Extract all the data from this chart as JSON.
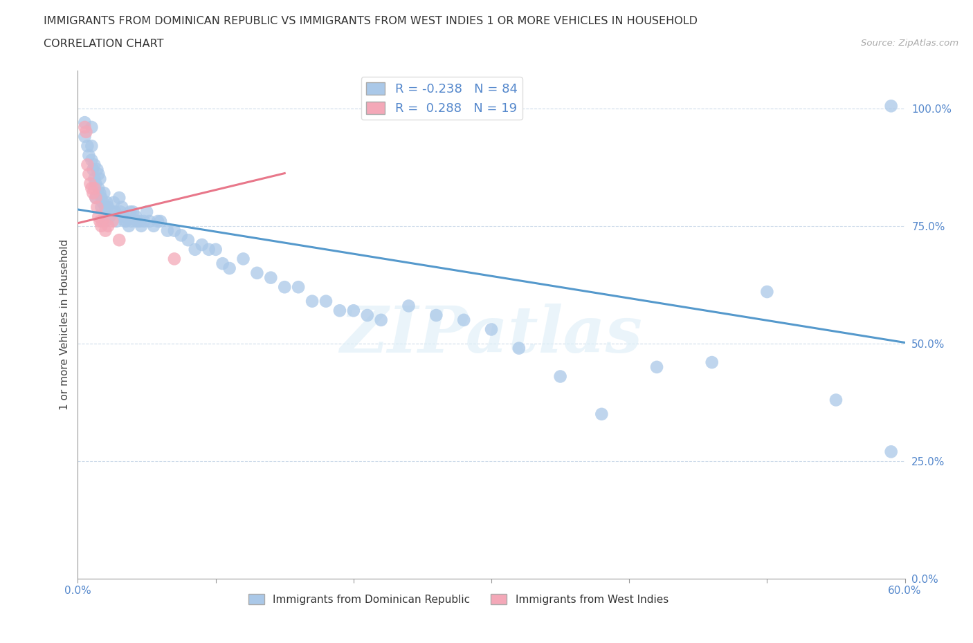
{
  "title_line1": "IMMIGRANTS FROM DOMINICAN REPUBLIC VS IMMIGRANTS FROM WEST INDIES 1 OR MORE VEHICLES IN HOUSEHOLD",
  "title_line2": "CORRELATION CHART",
  "source_text": "Source: ZipAtlas.com",
  "ylabel": "1 or more Vehicles in Household",
  "xmin": 0.0,
  "xmax": 0.6,
  "ymin": 0.0,
  "ymax": 1.08,
  "yticks": [
    0.0,
    0.25,
    0.5,
    0.75,
    1.0
  ],
  "ytick_labels": [
    "0.0%",
    "25.0%",
    "50.0%",
    "75.0%",
    "100.0%"
  ],
  "xtick_labels": [
    "0.0%",
    "",
    "",
    "",
    "",
    "",
    "60.0%"
  ],
  "xticks": [
    0.0,
    0.1,
    0.2,
    0.3,
    0.4,
    0.5,
    0.6
  ],
  "blue_R": -0.238,
  "blue_N": 84,
  "pink_R": 0.288,
  "pink_N": 19,
  "blue_color": "#aac8e8",
  "pink_color": "#f4a8b8",
  "blue_line_color": "#5599cc",
  "pink_line_color": "#e8778a",
  "legend_label_blue": "Immigrants from Dominican Republic",
  "legend_label_pink": "Immigrants from West Indies",
  "watermark": "ZIPatlas",
  "blue_line_x0": 0.0,
  "blue_line_y0": 0.785,
  "blue_line_x1": 0.6,
  "blue_line_y1": 0.502,
  "pink_line_x0": 0.0,
  "pink_line_y0": 0.756,
  "pink_line_x1": 0.15,
  "pink_line_y1": 0.862,
  "blue_scatter_x": [
    0.005,
    0.005,
    0.007,
    0.008,
    0.01,
    0.01,
    0.01,
    0.011,
    0.012,
    0.012,
    0.013,
    0.013,
    0.014,
    0.015,
    0.015,
    0.016,
    0.016,
    0.017,
    0.017,
    0.018,
    0.019,
    0.02,
    0.02,
    0.021,
    0.022,
    0.023,
    0.025,
    0.026,
    0.027,
    0.028,
    0.03,
    0.031,
    0.032,
    0.033,
    0.034,
    0.035,
    0.037,
    0.038,
    0.039,
    0.04,
    0.042,
    0.043,
    0.045,
    0.046,
    0.048,
    0.05,
    0.052,
    0.055,
    0.058,
    0.06,
    0.065,
    0.07,
    0.075,
    0.08,
    0.085,
    0.09,
    0.095,
    0.1,
    0.105,
    0.11,
    0.12,
    0.13,
    0.14,
    0.15,
    0.16,
    0.17,
    0.18,
    0.19,
    0.2,
    0.21,
    0.22,
    0.24,
    0.26,
    0.28,
    0.3,
    0.32,
    0.35,
    0.38,
    0.42,
    0.46,
    0.5,
    0.55,
    0.59,
    0.59
  ],
  "blue_scatter_y": [
    0.97,
    0.94,
    0.92,
    0.9,
    0.96,
    0.92,
    0.89,
    0.87,
    0.88,
    0.85,
    0.84,
    0.81,
    0.87,
    0.86,
    0.83,
    0.85,
    0.82,
    0.81,
    0.79,
    0.8,
    0.82,
    0.79,
    0.76,
    0.8,
    0.79,
    0.77,
    0.78,
    0.8,
    0.78,
    0.76,
    0.81,
    0.78,
    0.79,
    0.77,
    0.76,
    0.76,
    0.75,
    0.78,
    0.76,
    0.78,
    0.77,
    0.76,
    0.76,
    0.75,
    0.76,
    0.78,
    0.76,
    0.75,
    0.76,
    0.76,
    0.74,
    0.74,
    0.73,
    0.72,
    0.7,
    0.71,
    0.7,
    0.7,
    0.67,
    0.66,
    0.68,
    0.65,
    0.64,
    0.62,
    0.62,
    0.59,
    0.59,
    0.57,
    0.57,
    0.56,
    0.55,
    0.58,
    0.56,
    0.55,
    0.53,
    0.49,
    0.43,
    0.35,
    0.45,
    0.46,
    0.61,
    0.38,
    0.27,
    1.005
  ],
  "pink_scatter_x": [
    0.005,
    0.006,
    0.007,
    0.008,
    0.009,
    0.01,
    0.011,
    0.012,
    0.013,
    0.014,
    0.015,
    0.016,
    0.017,
    0.018,
    0.02,
    0.022,
    0.025,
    0.03,
    0.07
  ],
  "pink_scatter_y": [
    0.96,
    0.95,
    0.88,
    0.86,
    0.84,
    0.83,
    0.82,
    0.83,
    0.81,
    0.79,
    0.77,
    0.76,
    0.75,
    0.76,
    0.74,
    0.75,
    0.76,
    0.72,
    0.68
  ]
}
